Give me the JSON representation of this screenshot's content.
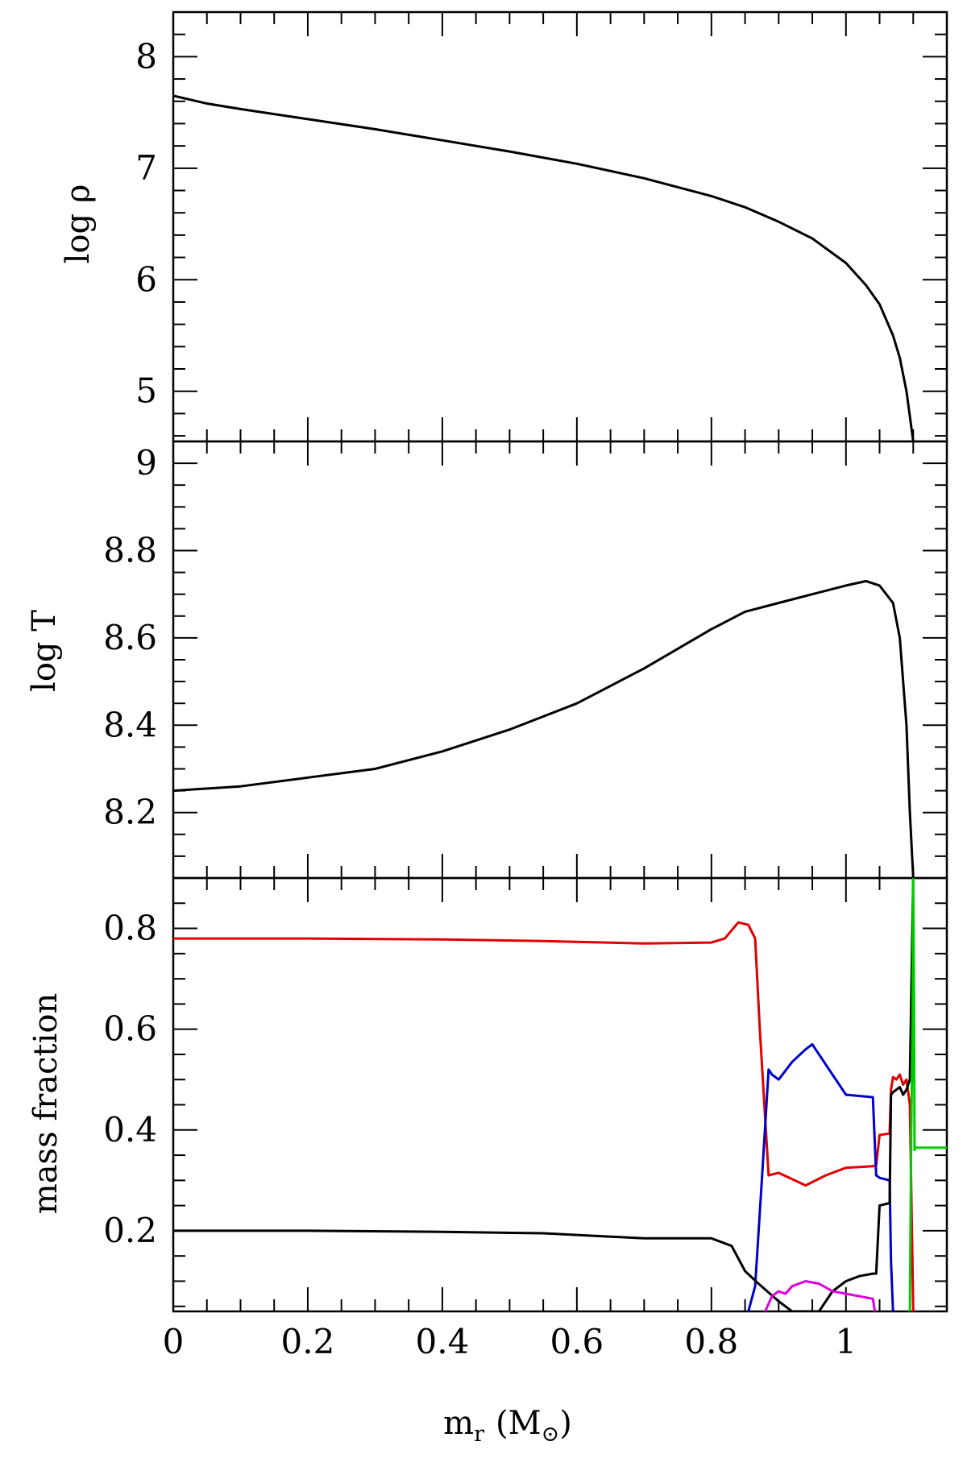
{
  "chart_data": [
    {
      "type": "line",
      "ylabel": "log ρ",
      "xlim": [
        0,
        1.15
      ],
      "ylim": [
        4.55,
        8.4
      ],
      "yticks_major": [
        5,
        6,
        7,
        8
      ],
      "yticks_minor_step": 0.2,
      "grid": false,
      "series": [
        {
          "color": "#000000",
          "x": [
            0,
            0.05,
            0.1,
            0.2,
            0.3,
            0.4,
            0.5,
            0.6,
            0.7,
            0.8,
            0.85,
            0.9,
            0.95,
            1.0,
            1.03,
            1.05,
            1.07,
            1.08,
            1.09,
            1.1
          ],
          "y": [
            7.65,
            7.58,
            7.53,
            7.44,
            7.35,
            7.25,
            7.15,
            7.04,
            6.91,
            6.75,
            6.65,
            6.52,
            6.37,
            6.15,
            5.95,
            5.78,
            5.5,
            5.3,
            5.0,
            4.55
          ]
        }
      ]
    },
    {
      "type": "line",
      "ylabel": "log T",
      "xlim": [
        0,
        1.15
      ],
      "ylim": [
        8.05,
        9.05
      ],
      "yticks_major": [
        8.2,
        8.4,
        8.6,
        8.8,
        9
      ],
      "yticks_minor_step": 0.05,
      "grid": false,
      "series": [
        {
          "color": "#000000",
          "x": [
            0,
            0.1,
            0.2,
            0.3,
            0.4,
            0.5,
            0.6,
            0.7,
            0.8,
            0.85,
            0.9,
            0.95,
            1.0,
            1.03,
            1.05,
            1.07,
            1.08,
            1.09,
            1.095,
            1.1
          ],
          "y": [
            8.25,
            8.26,
            8.28,
            8.3,
            8.34,
            8.39,
            8.45,
            8.53,
            8.62,
            8.66,
            8.68,
            8.7,
            8.72,
            8.73,
            8.72,
            8.68,
            8.6,
            8.4,
            8.2,
            8.05
          ]
        }
      ]
    },
    {
      "type": "line",
      "xlabel": "m_r (M_⊙)",
      "xlabel_main": "m",
      "xlabel_sub": "r",
      "xlabel_open": "(M",
      "xlabel_sun": "⊙",
      "xlabel_close": ")",
      "ylabel": "mass fraction",
      "xlim": [
        0,
        1.15
      ],
      "ylim": [
        0.04,
        0.9
      ],
      "xticks_major": [
        0,
        0.2,
        0.4,
        0.6,
        0.8,
        1
      ],
      "xticks_minor_step": 0.05,
      "yticks_major": [
        0.2,
        0.4,
        0.6,
        0.8
      ],
      "yticks_minor_step": 0.05,
      "grid": false,
      "series": [
        {
          "color": "#e00000",
          "x": [
            0,
            0.2,
            0.4,
            0.55,
            0.7,
            0.8,
            0.82,
            0.84,
            0.855,
            0.865,
            0.872,
            0.885,
            0.9,
            0.94,
            0.97,
            1.0,
            1.04,
            1.045,
            1.05,
            1.065,
            1.067,
            1.07,
            1.075,
            1.08,
            1.085,
            1.09,
            1.095,
            1.1
          ],
          "y": [
            0.78,
            0.78,
            0.778,
            0.775,
            0.77,
            0.772,
            0.78,
            0.812,
            0.807,
            0.78,
            0.6,
            0.31,
            0.315,
            0.29,
            0.31,
            0.325,
            0.328,
            0.33,
            0.39,
            0.393,
            0.48,
            0.505,
            0.5,
            0.51,
            0.49,
            0.5,
            0.45,
            0.04
          ]
        },
        {
          "color": "#0000cc",
          "x": [
            0.855,
            0.865,
            0.875,
            0.885,
            0.89,
            0.9,
            0.92,
            0.94,
            0.95,
            0.97,
            1.0,
            1.04,
            1.045,
            1.05,
            1.065,
            1.067,
            1.07
          ],
          "y": [
            0.04,
            0.09,
            0.3,
            0.52,
            0.51,
            0.5,
            0.535,
            0.56,
            0.57,
            0.53,
            0.47,
            0.465,
            0.31,
            0.305,
            0.3,
            0.14,
            0.04
          ]
        },
        {
          "color": "#000000",
          "x": [
            0,
            0.2,
            0.4,
            0.55,
            0.7,
            0.8,
            0.83,
            0.85,
            0.87,
            0.9,
            0.92,
            0.94,
            0.96,
            0.98,
            1.0,
            1.02,
            1.04,
            1.045,
            1.05,
            1.065,
            1.067,
            1.07,
            1.075,
            1.08,
            1.085,
            1.09,
            1.095,
            1.1
          ],
          "y": [
            0.2,
            0.2,
            0.198,
            0.195,
            0.185,
            0.185,
            0.17,
            0.12,
            0.095,
            0.06,
            0.04,
            0.04,
            0.04,
            0.08,
            0.1,
            0.11,
            0.115,
            0.115,
            0.25,
            0.255,
            0.47,
            0.475,
            0.48,
            0.485,
            0.47,
            0.48,
            0.5,
            0.9
          ]
        },
        {
          "color": "#dd00dd",
          "x": [
            0.88,
            0.89,
            0.9,
            0.91,
            0.92,
            0.94,
            0.96,
            0.98,
            1.0,
            1.02,
            1.04,
            1.043
          ],
          "y": [
            0.04,
            0.07,
            0.08,
            0.075,
            0.09,
            0.1,
            0.095,
            0.08,
            0.075,
            0.07,
            0.065,
            0.04
          ]
        },
        {
          "color": "#00cc00",
          "x": [
            1.095,
            1.097,
            1.099,
            1.1,
            1.101,
            1.102,
            1.102,
            1.15
          ],
          "y": [
            0.04,
            0.4,
            0.6,
            0.9,
            0.7,
            0.36,
            0.365,
            0.365
          ]
        }
      ]
    }
  ]
}
